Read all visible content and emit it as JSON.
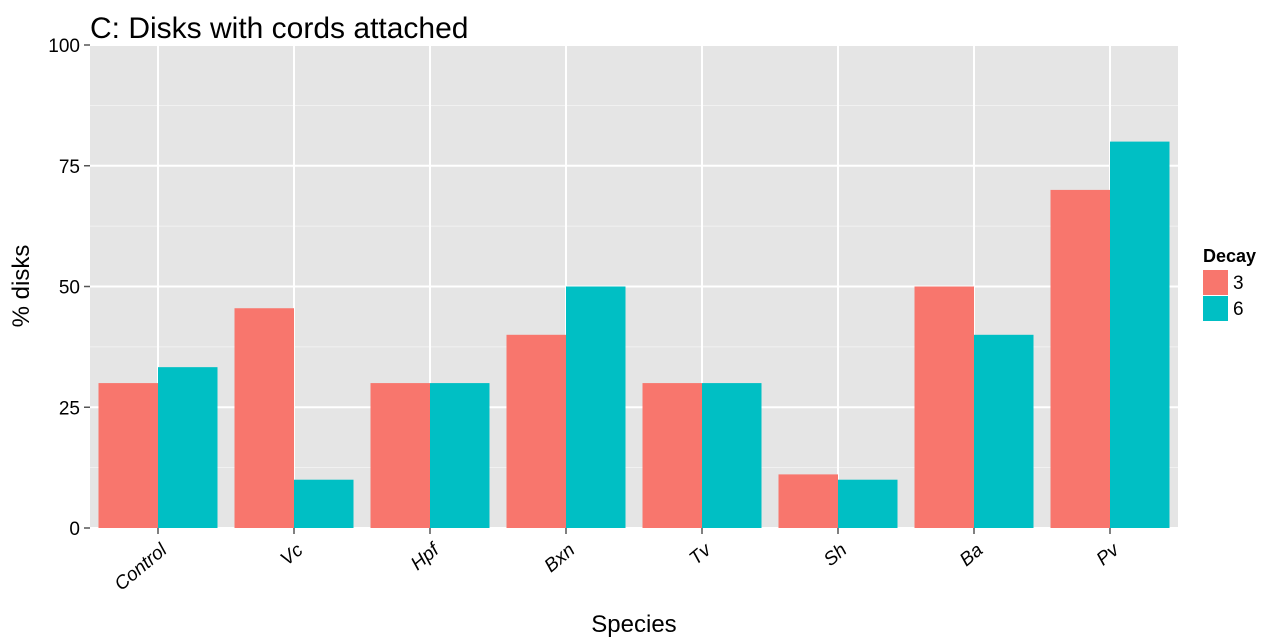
{
  "chart_data": {
    "type": "bar",
    "title": "C: Disks with cords attached",
    "xlabel": "Species",
    "ylabel": "% disks",
    "ylim": [
      0,
      100
    ],
    "yticks": [
      0,
      25,
      50,
      75,
      100
    ],
    "grid": true,
    "legend": {
      "title": "Decay",
      "position": "right"
    },
    "categories": [
      "Control",
      "Vc",
      "Hpf",
      "Bxn",
      "Tv",
      "Sh",
      "Ba",
      "Pv"
    ],
    "series": [
      {
        "name": "3",
        "color": "#F8766D",
        "values": [
          30,
          45.5,
          30,
          40,
          30,
          11.1,
          50,
          70
        ]
      },
      {
        "name": "6",
        "color": "#00BFC4",
        "values": [
          33.3,
          10,
          30,
          50,
          30,
          10,
          40,
          80
        ]
      }
    ],
    "panel_background": "#E5E5E5",
    "grid_color": "#FFFFFF"
  }
}
